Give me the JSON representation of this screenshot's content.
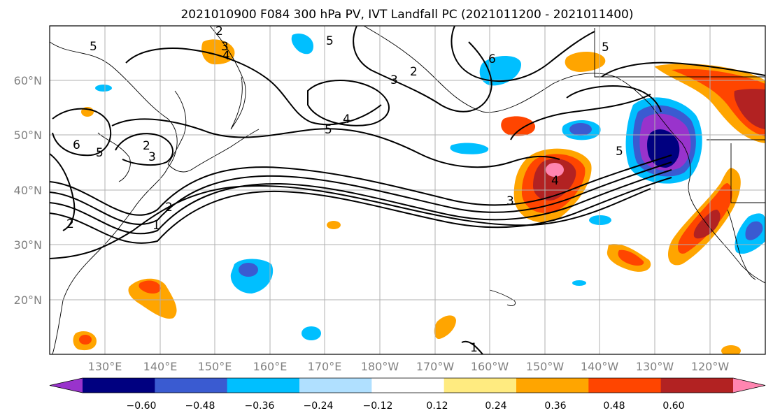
{
  "title": "2021010900 F084 300 hPa PV, IVT Landfall PC (2021011200 - 2021011400)",
  "lat_labels": [
    "60°N",
    "50°N",
    "40°N",
    "30°N",
    "20°N"
  ],
  "lon_labels": [
    "130°E",
    "140°E",
    "150°E",
    "160°E",
    "170°E",
    "180°W",
    "170°W",
    "160°W",
    "150°W",
    "140°W",
    "130°W",
    "120°W"
  ],
  "colorbar": {
    "ticks": [
      "−0.60",
      "−0.48",
      "−0.36",
      "−0.24",
      "−0.12",
      "0.12",
      "0.24",
      "0.36",
      "0.48",
      "0.60"
    ],
    "colors": [
      "#9933cc",
      "#000080",
      "#3a5bd1",
      "#00bfff",
      "#b0e0ff",
      "#ffffff",
      "#ffeb80",
      "#ffa500",
      "#ff4500",
      "#b22222",
      "#ff85b0"
    ]
  },
  "contour_labels": [
    "2",
    "3",
    "4",
    "5",
    "5",
    "3",
    "6",
    "2",
    "4",
    "5",
    "5",
    "6",
    "2",
    "3",
    "5",
    "2",
    "2",
    "1",
    "3",
    "4",
    "5",
    "1"
  ]
}
